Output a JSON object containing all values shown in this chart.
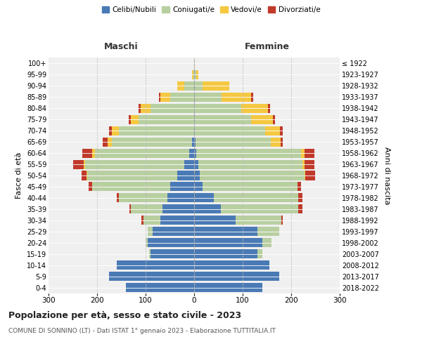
{
  "age_groups": [
    "0-4",
    "5-9",
    "10-14",
    "15-19",
    "20-24",
    "25-29",
    "30-34",
    "35-39",
    "40-44",
    "45-49",
    "50-54",
    "55-59",
    "60-64",
    "65-69",
    "70-74",
    "75-79",
    "80-84",
    "85-89",
    "90-94",
    "95-99",
    "100+"
  ],
  "birth_years": [
    "2018-2022",
    "2013-2017",
    "2008-2012",
    "2003-2007",
    "1998-2002",
    "1993-1997",
    "1988-1992",
    "1983-1987",
    "1978-1982",
    "1973-1977",
    "1968-1972",
    "1963-1967",
    "1958-1962",
    "1953-1957",
    "1948-1952",
    "1943-1947",
    "1938-1942",
    "1933-1937",
    "1928-1932",
    "1923-1927",
    "≤ 1922"
  ],
  "male": {
    "celibe": [
      140,
      175,
      160,
      90,
      95,
      85,
      70,
      65,
      55,
      50,
      35,
      20,
      10,
      5,
      0,
      0,
      0,
      0,
      0,
      0,
      0
    ],
    "coniugato": [
      0,
      0,
      0,
      3,
      5,
      10,
      35,
      65,
      100,
      160,
      185,
      205,
      195,
      165,
      155,
      115,
      90,
      50,
      20,
      2,
      0
    ],
    "vedovo": [
      0,
      0,
      0,
      0,
      0,
      0,
      0,
      0,
      0,
      0,
      2,
      2,
      5,
      8,
      15,
      15,
      20,
      20,
      15,
      2,
      0
    ],
    "divorziato": [
      0,
      0,
      0,
      0,
      0,
      0,
      3,
      3,
      5,
      8,
      10,
      22,
      20,
      10,
      5,
      5,
      5,
      2,
      0,
      0,
      0
    ]
  },
  "female": {
    "nubile": [
      140,
      175,
      155,
      130,
      140,
      130,
      85,
      55,
      40,
      18,
      12,
      8,
      5,
      3,
      2,
      2,
      2,
      2,
      2,
      2,
      0
    ],
    "coniugata": [
      0,
      0,
      0,
      10,
      20,
      45,
      95,
      160,
      175,
      195,
      215,
      215,
      215,
      155,
      145,
      115,
      95,
      55,
      15,
      2,
      0
    ],
    "vedova": [
      0,
      0,
      0,
      0,
      0,
      0,
      0,
      0,
      0,
      0,
      2,
      5,
      8,
      20,
      30,
      45,
      55,
      60,
      55,
      5,
      2
    ],
    "divorziata": [
      0,
      0,
      0,
      0,
      0,
      0,
      3,
      8,
      8,
      8,
      20,
      20,
      20,
      5,
      5,
      5,
      5,
      5,
      0,
      0,
      0
    ]
  },
  "colors": {
    "celibe": "#4a7ab5",
    "coniugato": "#b8cfa0",
    "vedovo": "#f5c842",
    "divorziato": "#c0392b"
  },
  "xlim": 300,
  "title": "Popolazione per età, sesso e stato civile - 2023",
  "subtitle": "COMUNE DI SONNINO (LT) - Dati ISTAT 1° gennaio 2023 - Elaborazione TUTTITALIA.IT",
  "legend_labels": [
    "Celibi/Nubili",
    "Coniugati/e",
    "Vedovi/e",
    "Divorziati/e"
  ],
  "ylabel_left": "Fasce di età",
  "ylabel_right": "Anni di nascita",
  "label_maschi": "Maschi",
  "label_femmine": "Femmine",
  "background_color": "#ffffff",
  "plot_background": "#f0f0f0"
}
